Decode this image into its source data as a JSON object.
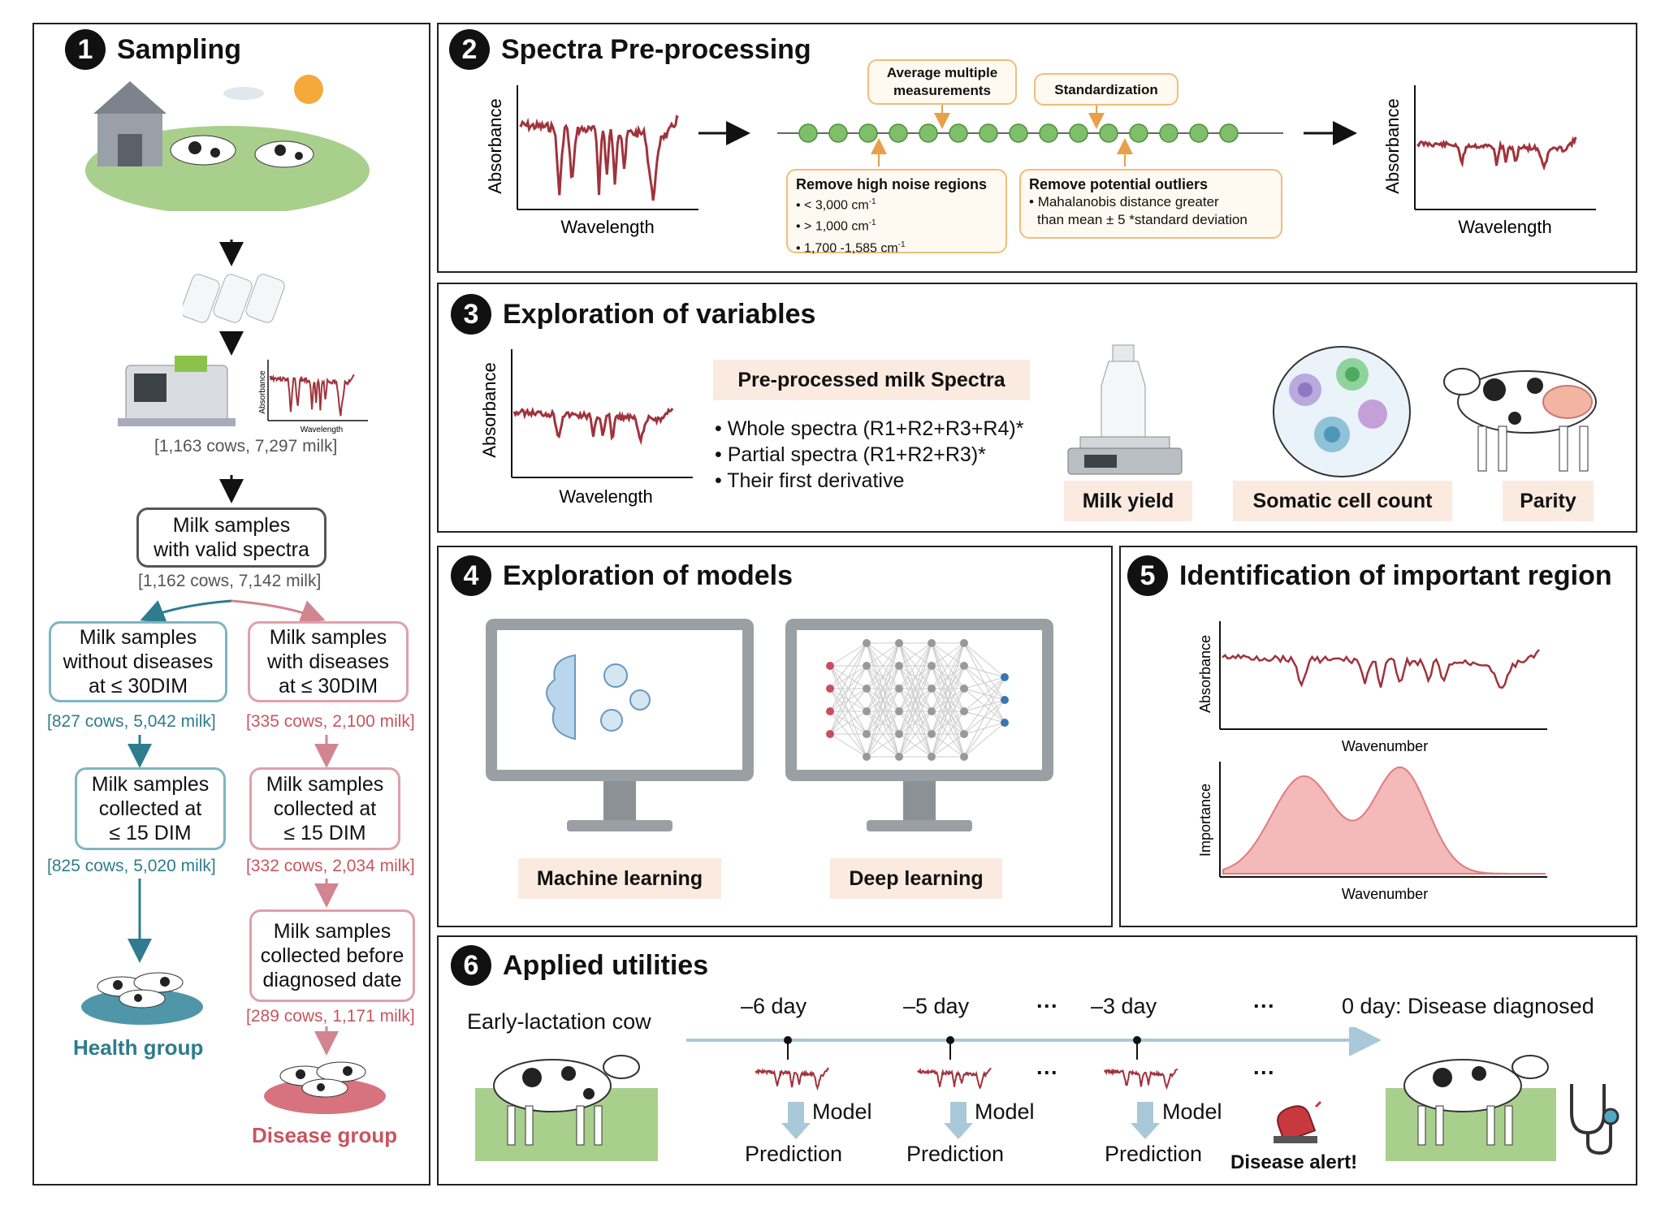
{
  "panel1": {
    "num": "1",
    "title": "Sampling",
    "stat1": "[1,163 cows, 7,297 milk]",
    "valid_box": "Milk samples\nwith valid spectra",
    "stat2": "[1,162 cows, 7,142 milk]",
    "left": {
      "box1": "Milk samples\nwithout diseases\nat ≤ 30DIM",
      "stat1": "[827 cows, 5,042 milk]",
      "box2": "Milk samples\ncollected at\n≤ 15 DIM",
      "stat2": "[825 cows, 5,020 milk]",
      "group": "Health group"
    },
    "right": {
      "box1": "Milk samples\nwith diseases\nat ≤ 30DIM",
      "stat1": "[335 cows, 2,100 milk]",
      "box2": "Milk samples\ncollected at\n≤ 15 DIM",
      "stat2": "[332 cows, 2,034 milk]",
      "box3": "Milk samples\ncollected before\ndiagnosed date",
      "stat3": "[289 cows, 1,171 milk]",
      "group": "Disease group"
    },
    "mini_chart": {
      "ylabel": "Absorbance",
      "xlabel": "Wavelength"
    }
  },
  "panel2": {
    "num": "2",
    "title": "Spectra Pre-processing",
    "ylabel": "Absorbance",
    "xlabel": "Wavelength",
    "avg": "Average multiple measurements",
    "std": "Standardization",
    "noise": {
      "title": "Remove high noise regions",
      "items": [
        "< 3,000 cm",
        "> 1,000 cm",
        "1,700 -1,585 cm"
      ],
      "sup": "-1"
    },
    "outlier": {
      "title": "Remove potential outliers",
      "items": [
        "Mahalanobis distance greater",
        "than mean ± 5 *standard deviation"
      ]
    }
  },
  "panel3": {
    "num": "3",
    "title": "Exploration of variables",
    "ylabel": "Absorbance",
    "xlabel": "Wavelength",
    "spectra_title": "Pre-processed milk Spectra",
    "bullets": [
      "Whole spectra (R1+R2+R3+R4)*",
      "Partial spectra (R1+R2+R3)*",
      "Their first derivative"
    ],
    "vars": [
      "Milk yield",
      "Somatic cell count",
      "Parity"
    ]
  },
  "panel4": {
    "num": "4",
    "title": "Exploration of models",
    "models": [
      "Machine learning",
      "Deep learning"
    ]
  },
  "panel5": {
    "num": "5",
    "title": "Identification of important region",
    "ylabel1": "Absorbance",
    "xlabel1": "Wavenumber",
    "ylabel2": "Importance",
    "xlabel2": "Wavenumber"
  },
  "panel6": {
    "num": "6",
    "title": "Applied utilities",
    "cow_label": "Early-lactation cow",
    "days": [
      "–6 day",
      "–5 day",
      "···",
      "–3 day",
      "···",
      "0 day: Disease diagnosed"
    ],
    "mid_dots": [
      "···",
      "···"
    ],
    "model": "Model",
    "prediction": "Prediction",
    "alert": "Disease alert!"
  },
  "colors": {
    "spectrum": "#a0333c",
    "teal": "#2e7c8d",
    "pink": "#c8555f",
    "orange": "#efbd7a",
    "green_dot": "#7fbf6a",
    "arrow_blue": "#a9c8d9"
  }
}
